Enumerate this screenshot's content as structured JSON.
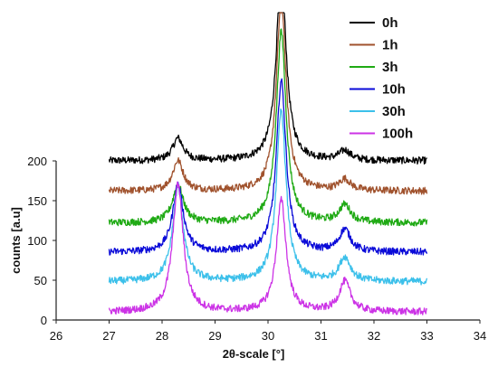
{
  "chart_data": {
    "type": "line",
    "xlabel": "2θ-scale [°]",
    "ylabel": "counts [a.u]",
    "xlim": [
      26,
      34
    ],
    "ylim": [
      0,
      200
    ],
    "x_ticks": [
      "26",
      "27",
      "28",
      "29",
      "30",
      "31",
      "32",
      "33",
      "34"
    ],
    "y_ticks": [
      "0",
      "50",
      "100",
      "150",
      "200"
    ],
    "x_range": [
      27,
      33
    ],
    "grid": false,
    "legend_position": "top-right",
    "peaks": [
      28.3,
      30.25,
      31.45
    ],
    "series": [
      {
        "name": "0h",
        "color": "#000000",
        "baseline": 200,
        "peak_heights": [
          28,
          240,
          12
        ]
      },
      {
        "name": "1h",
        "color": "#a0522d",
        "baseline": 162,
        "peak_heights": [
          38,
          240,
          14
        ]
      },
      {
        "name": "3h",
        "color": "#1faa14",
        "baseline": 122,
        "peak_heights": [
          48,
          240,
          22
        ]
      },
      {
        "name": "10h",
        "color": "#0a0ad8",
        "baseline": 85,
        "peak_heights": [
          85,
          215,
          28
        ]
      },
      {
        "name": "30h",
        "color": "#3cc0ea",
        "baseline": 48,
        "peak_heights": [
          118,
          215,
          30
        ]
      },
      {
        "name": "100h",
        "color": "#cc33e6",
        "baseline": 10,
        "peak_heights": [
          160,
          140,
          38
        ]
      }
    ]
  }
}
